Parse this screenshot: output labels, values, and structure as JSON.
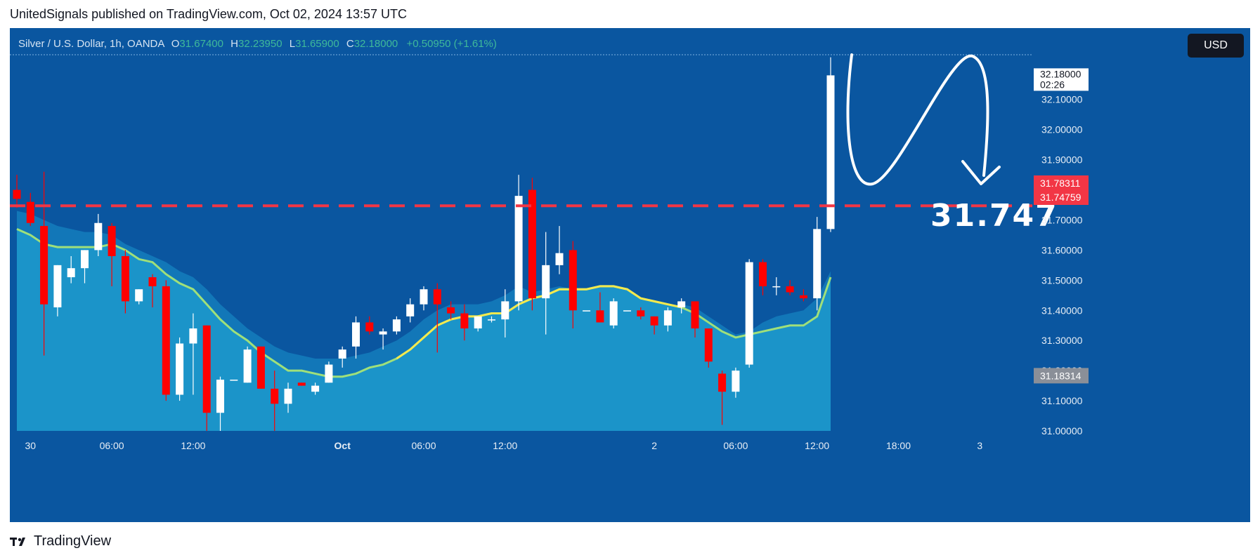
{
  "header": {
    "publish_text": "UnitedSignals published on TradingView.com, Oct 02, 2024 13:57 UTC"
  },
  "legend": {
    "symbol": "Silver / U.S. Dollar, 1h, OANDA",
    "open_label": "O",
    "open": "31.67400",
    "high_label": "H",
    "high": "32.23950",
    "low_label": "L",
    "low": "31.65900",
    "close_label": "C",
    "close": "32.18000",
    "change": "+0.50950 (+1.61%)"
  },
  "currency_button": "USD",
  "brand": {
    "name": "TradingView"
  },
  "colors": {
    "background": "#0a56a0",
    "up_candle": "#ffffff",
    "down_candle": "#ff0000",
    "ema_line": "#f3e94e",
    "dashed_level": "#f23645",
    "area_fill": "#1b94c9"
  },
  "chart_data": {
    "type": "candlestick",
    "instrument": "Silver / U.S. Dollar",
    "timeframe": "1h",
    "ylim": [
      31.0,
      32.25
    ],
    "y_ticks": [
      "31.00000",
      "31.10000",
      "31.20000",
      "31.30000",
      "31.40000",
      "31.50000",
      "31.60000",
      "31.70000",
      "31.80000",
      "31.90000",
      "32.00000",
      "32.10000"
    ],
    "x_tick_labels": [
      "30",
      "06:00",
      "12:00",
      "Oct",
      "06:00",
      "12:00",
      "2",
      "06:00",
      "12:00",
      "18:00",
      "3"
    ],
    "x_tick_index": [
      1,
      7,
      13,
      24,
      30,
      36,
      47,
      53,
      59,
      65,
      71
    ],
    "candles": [
      {
        "o": 31.8,
        "h": 31.85,
        "l": 31.74,
        "c": 31.77
      },
      {
        "o": 31.76,
        "h": 31.79,
        "l": 31.68,
        "c": 31.69
      },
      {
        "o": 31.68,
        "h": 31.86,
        "l": 31.25,
        "c": 31.42
      },
      {
        "o": 31.41,
        "h": 31.55,
        "l": 31.38,
        "c": 31.55
      },
      {
        "o": 31.51,
        "h": 31.58,
        "l": 31.49,
        "c": 31.54
      },
      {
        "o": 31.54,
        "h": 31.6,
        "l": 31.49,
        "c": 31.6
      },
      {
        "o": 31.6,
        "h": 31.72,
        "l": 31.58,
        "c": 31.69
      },
      {
        "o": 31.68,
        "h": 31.69,
        "l": 31.48,
        "c": 31.58
      },
      {
        "o": 31.58,
        "h": 31.6,
        "l": 31.39,
        "c": 31.43
      },
      {
        "o": 31.43,
        "h": 31.47,
        "l": 31.42,
        "c": 31.47
      },
      {
        "o": 31.51,
        "h": 31.52,
        "l": 31.41,
        "c": 31.48
      },
      {
        "o": 31.48,
        "h": 31.5,
        "l": 31.1,
        "c": 31.12
      },
      {
        "o": 31.12,
        "h": 31.31,
        "l": 31.1,
        "c": 31.29
      },
      {
        "o": 31.29,
        "h": 31.39,
        "l": 31.12,
        "c": 31.34
      },
      {
        "o": 31.35,
        "h": 31.35,
        "l": 31.0,
        "c": 31.06
      },
      {
        "o": 31.06,
        "h": 31.18,
        "l": 31.0,
        "c": 31.17
      },
      {
        "o": 31.17,
        "h": 31.17,
        "l": 31.17,
        "c": 31.17
      },
      {
        "o": 31.16,
        "h": 31.28,
        "l": 31.16,
        "c": 31.27
      },
      {
        "o": 31.28,
        "h": 31.28,
        "l": 31.14,
        "c": 31.14
      },
      {
        "o": 31.14,
        "h": 31.2,
        "l": 31.0,
        "c": 31.09
      },
      {
        "o": 31.09,
        "h": 31.16,
        "l": 31.06,
        "c": 31.14
      },
      {
        "o": 31.16,
        "h": 31.16,
        "l": 31.15,
        "c": 31.15
      },
      {
        "o": 31.13,
        "h": 31.16,
        "l": 31.12,
        "c": 31.15
      },
      {
        "o": 31.16,
        "h": 31.23,
        "l": 31.16,
        "c": 31.22
      },
      {
        "o": 31.24,
        "h": 31.28,
        "l": 31.21,
        "c": 31.27
      },
      {
        "o": 31.28,
        "h": 31.38,
        "l": 31.24,
        "c": 31.36
      },
      {
        "o": 31.36,
        "h": 31.38,
        "l": 31.32,
        "c": 31.33
      },
      {
        "o": 31.32,
        "h": 31.34,
        "l": 31.27,
        "c": 31.33
      },
      {
        "o": 31.33,
        "h": 31.38,
        "l": 31.32,
        "c": 31.37
      },
      {
        "o": 31.38,
        "h": 31.44,
        "l": 31.36,
        "c": 31.42
      },
      {
        "o": 31.42,
        "h": 31.48,
        "l": 31.4,
        "c": 31.47
      },
      {
        "o": 31.47,
        "h": 31.49,
        "l": 31.26,
        "c": 31.42
      },
      {
        "o": 31.41,
        "h": 31.43,
        "l": 31.37,
        "c": 31.39
      },
      {
        "o": 31.39,
        "h": 31.42,
        "l": 31.3,
        "c": 31.34
      },
      {
        "o": 31.34,
        "h": 31.38,
        "l": 31.33,
        "c": 31.38
      },
      {
        "o": 31.37,
        "h": 31.38,
        "l": 31.36,
        "c": 31.37
      },
      {
        "o": 31.37,
        "h": 31.47,
        "l": 31.31,
        "c": 31.43
      },
      {
        "o": 31.43,
        "h": 31.85,
        "l": 31.4,
        "c": 31.78
      },
      {
        "o": 31.8,
        "h": 31.84,
        "l": 31.4,
        "c": 31.44
      },
      {
        "o": 31.44,
        "h": 31.66,
        "l": 31.32,
        "c": 31.55
      },
      {
        "o": 31.55,
        "h": 31.68,
        "l": 31.52,
        "c": 31.59
      },
      {
        "o": 31.6,
        "h": 31.63,
        "l": 31.34,
        "c": 31.4
      },
      {
        "o": 31.4,
        "h": 31.4,
        "l": 31.4,
        "c": 31.4
      },
      {
        "o": 31.4,
        "h": 31.46,
        "l": 31.36,
        "c": 31.36
      },
      {
        "o": 31.35,
        "h": 31.44,
        "l": 31.34,
        "c": 31.43
      },
      {
        "o": 31.4,
        "h": 31.4,
        "l": 31.4,
        "c": 31.4
      },
      {
        "o": 31.4,
        "h": 31.41,
        "l": 31.37,
        "c": 31.38
      },
      {
        "o": 31.38,
        "h": 31.38,
        "l": 31.32,
        "c": 31.35
      },
      {
        "o": 31.35,
        "h": 31.41,
        "l": 31.33,
        "c": 31.4
      },
      {
        "o": 31.41,
        "h": 31.44,
        "l": 31.39,
        "c": 31.43
      },
      {
        "o": 31.43,
        "h": 31.43,
        "l": 31.31,
        "c": 31.34
      },
      {
        "o": 31.34,
        "h": 31.34,
        "l": 31.21,
        "c": 31.23
      },
      {
        "o": 31.19,
        "h": 31.2,
        "l": 31.02,
        "c": 31.13
      },
      {
        "o": 31.13,
        "h": 31.21,
        "l": 31.11,
        "c": 31.2
      },
      {
        "o": 31.22,
        "h": 31.57,
        "l": 31.21,
        "c": 31.56
      },
      {
        "o": 31.56,
        "h": 31.57,
        "l": 31.45,
        "c": 31.48
      },
      {
        "o": 31.48,
        "h": 31.51,
        "l": 31.45,
        "c": 31.48
      },
      {
        "o": 31.48,
        "h": 31.5,
        "l": 31.45,
        "c": 31.46
      },
      {
        "o": 31.45,
        "h": 31.47,
        "l": 31.43,
        "c": 31.44
      },
      {
        "o": 31.44,
        "h": 31.71,
        "l": 31.4,
        "c": 31.67
      },
      {
        "o": 31.67,
        "h": 32.24,
        "l": 31.66,
        "c": 32.18
      }
    ],
    "ema": [
      31.67,
      31.65,
      31.62,
      31.61,
      31.61,
      31.61,
      31.61,
      31.62,
      31.6,
      31.57,
      31.56,
      31.52,
      31.49,
      31.47,
      31.42,
      31.37,
      31.33,
      31.3,
      31.26,
      31.23,
      31.2,
      31.2,
      31.19,
      31.18,
      31.18,
      31.19,
      31.21,
      31.22,
      31.24,
      31.27,
      31.31,
      31.35,
      31.37,
      31.38,
      31.38,
      31.39,
      31.39,
      31.42,
      31.44,
      31.45,
      31.47,
      31.47,
      31.47,
      31.48,
      31.48,
      31.47,
      31.44,
      31.43,
      31.42,
      31.41,
      31.39,
      31.36,
      31.33,
      31.31,
      31.32,
      31.33,
      31.34,
      31.35,
      31.35,
      31.38,
      31.51
    ],
    "ema_upper": [
      31.73,
      31.72,
      31.7,
      31.68,
      31.67,
      31.66,
      31.66,
      31.65,
      31.62,
      31.6,
      31.58,
      31.56,
      31.53,
      31.51,
      31.47,
      31.42,
      31.38,
      31.34,
      31.31,
      31.28,
      31.26,
      31.25,
      31.24,
      31.24,
      31.24,
      31.25,
      31.26,
      31.28,
      31.3,
      31.33,
      31.37,
      31.4,
      31.42,
      31.42,
      31.42,
      31.43,
      31.45,
      31.48,
      31.46,
      31.47,
      31.48,
      31.47,
      31.46,
      31.46,
      31.45,
      31.44,
      31.43,
      31.41,
      31.41,
      31.42,
      31.41,
      31.38,
      31.35,
      31.32,
      31.33,
      31.36,
      31.38,
      31.39,
      31.4,
      31.44,
      31.53
    ],
    "price_labels": [
      {
        "label": "32.18000",
        "time": "02:26",
        "value": 32.18
      },
      {
        "label": "31.78311",
        "value": 31.78311
      },
      {
        "label": "31.74759",
        "value": 31.74759
      },
      {
        "label": "31.18314",
        "value": 31.18314
      }
    ],
    "dashed_level": 31.747,
    "annotation_text": "31.747"
  }
}
